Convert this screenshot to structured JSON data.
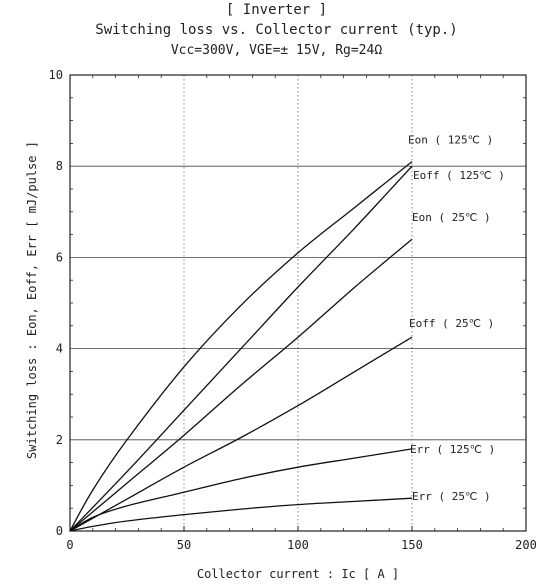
{
  "header": {
    "title": "[ Inverter ]",
    "subtitle": "Switching loss  vs.  Collector current  (typ.)",
    "conditions": "Vcc=300V, VGE=± 15V, Rg=24Ω"
  },
  "chart_data": {
    "type": "line",
    "title": "Switching loss vs. Collector current (typ.)",
    "xlabel": "Collector current  :  Ic  [ A ]",
    "ylabel": "Switching loss  :  Eon, Eoff, Err  [ mJ/pulse ]",
    "xlim": [
      0,
      200
    ],
    "ylim": [
      0,
      10
    ],
    "xticks": [
      "0",
      "50",
      "100",
      "150",
      "200"
    ],
    "yticks": [
      "0",
      "2",
      "4",
      "6",
      "8",
      "10"
    ],
    "grid": true,
    "series": [
      {
        "name": "Eon ( 125℃ )",
        "x": [
          0,
          10,
          25,
          50,
          75,
          100,
          125,
          150
        ],
        "y": [
          0,
          0.9,
          2.0,
          3.6,
          4.95,
          6.1,
          7.1,
          8.1
        ]
      },
      {
        "name": "Eoff ( 125℃ )",
        "x": [
          0,
          25,
          50,
          75,
          100,
          125,
          150
        ],
        "y": [
          0,
          1.3,
          2.65,
          4.0,
          5.35,
          6.65,
          8.0
        ]
      },
      {
        "name": "Eon ( 25℃ )",
        "x": [
          0,
          25,
          50,
          75,
          100,
          125,
          150
        ],
        "y": [
          0,
          1.05,
          2.1,
          3.2,
          4.25,
          5.35,
          6.4
        ]
      },
      {
        "name": "Eoff ( 25℃ )",
        "x": [
          0,
          25,
          50,
          75,
          100,
          125,
          150
        ],
        "y": [
          0,
          0.7,
          1.4,
          2.05,
          2.75,
          3.5,
          4.25
        ]
      },
      {
        "name": "Err ( 125℃ )",
        "x": [
          0,
          10,
          25,
          50,
          75,
          100,
          125,
          150
        ],
        "y": [
          0,
          0.3,
          0.55,
          0.85,
          1.15,
          1.4,
          1.6,
          1.8
        ]
      },
      {
        "name": "Err ( 25℃ )",
        "x": [
          0,
          10,
          25,
          50,
          75,
          100,
          125,
          150
        ],
        "y": [
          0,
          0.1,
          0.22,
          0.36,
          0.48,
          0.58,
          0.65,
          0.72
        ]
      }
    ]
  }
}
